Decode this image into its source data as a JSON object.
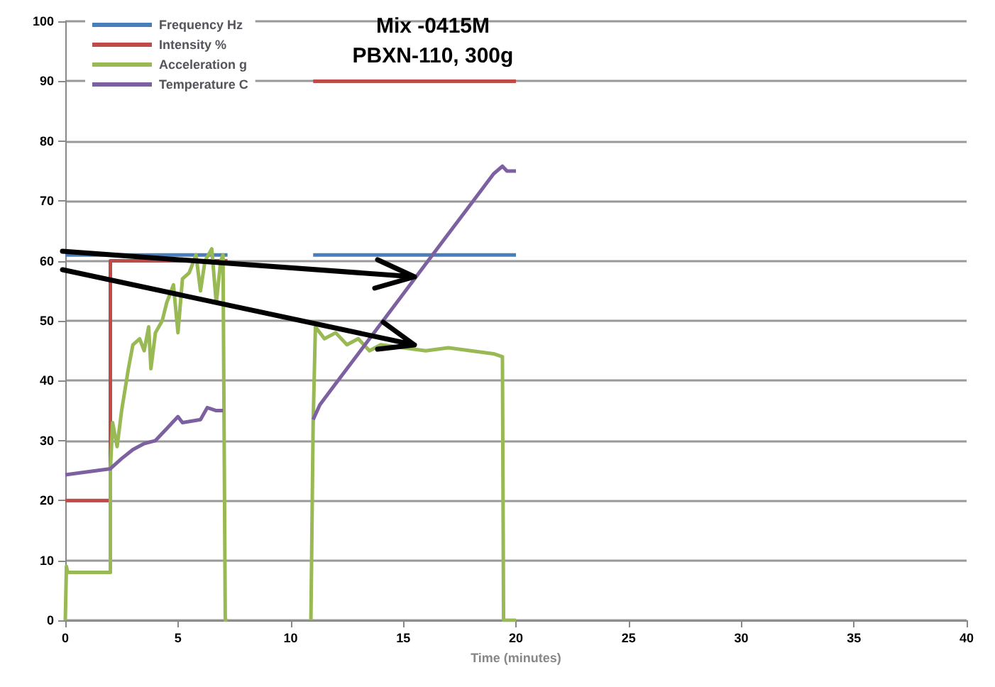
{
  "chart_data": {
    "type": "line",
    "title": "Mix -0415M",
    "subtitle": "PBXN-110, 300g",
    "xlabel": "Time (minutes)",
    "xlim": [
      0,
      40
    ],
    "xticks": [
      0,
      5,
      10,
      15,
      20,
      25,
      30,
      35,
      40
    ],
    "ylim": [
      0,
      100
    ],
    "yticks": [
      0,
      10,
      20,
      30,
      40,
      50,
      60,
      70,
      80,
      90,
      100
    ],
    "grid": "y",
    "legend": "top left",
    "marker": "none",
    "line_style": "solid",
    "series": [
      {
        "name": "Frequency Hz",
        "color": "#4a7ebb",
        "x": [
          0,
          7.2,
          9,
          11,
          20
        ],
        "values": [
          61,
          61,
          null,
          61,
          61
        ]
      },
      {
        "name": "Intensity %",
        "color": "#be4b48",
        "x": [
          0,
          2,
          2,
          7.2,
          9,
          11,
          20
        ],
        "values": [
          20,
          20,
          60,
          60,
          null,
          90,
          90
        ]
      },
      {
        "name": "Acceleration g",
        "color": "#98b954",
        "x": [
          0,
          0.05,
          0.1,
          2,
          2,
          2.1,
          2.3,
          2.5,
          2.8,
          3,
          3.3,
          3.5,
          3.7,
          3.8,
          4,
          4.3,
          4.5,
          4.8,
          5,
          5.2,
          5.5,
          5.8,
          6,
          6.2,
          6.5,
          6.7,
          6.9,
          7,
          7.1,
          7.2,
          9,
          10.9,
          11,
          11.1,
          11.5,
          12,
          12.5,
          13,
          13.5,
          14,
          15,
          16,
          17,
          18,
          19,
          19.4,
          19.45,
          20
        ],
        "values": [
          0,
          9,
          8,
          8,
          25,
          33,
          29,
          35,
          42,
          46,
          47,
          45,
          49,
          42,
          48,
          50,
          53,
          56,
          48,
          57,
          58,
          61,
          55,
          60,
          62,
          53,
          60,
          61,
          0,
          0,
          null,
          0,
          33,
          49,
          47,
          48,
          46,
          47,
          45,
          46,
          45.5,
          45,
          45.5,
          45,
          44.5,
          44,
          0,
          0
        ]
      },
      {
        "name": "Temperature C",
        "color": "#7d60a0",
        "x": [
          0,
          2,
          2.5,
          3,
          3.5,
          4,
          4.5,
          5,
          5.2,
          6,
          6.3,
          6.7,
          7,
          9,
          11,
          11.3,
          12,
          13,
          14,
          15,
          16,
          17,
          18,
          19,
          19.4,
          19.6,
          20
        ],
        "values": [
          24.3,
          25.3,
          27,
          28.5,
          29.5,
          30,
          32,
          34,
          33,
          33.5,
          35.5,
          35,
          35,
          null,
          33.5,
          36,
          39.5,
          44.5,
          49.5,
          54.5,
          59.5,
          64.5,
          69.5,
          74.5,
          75.8,
          75,
          75
        ]
      }
    ]
  }
}
